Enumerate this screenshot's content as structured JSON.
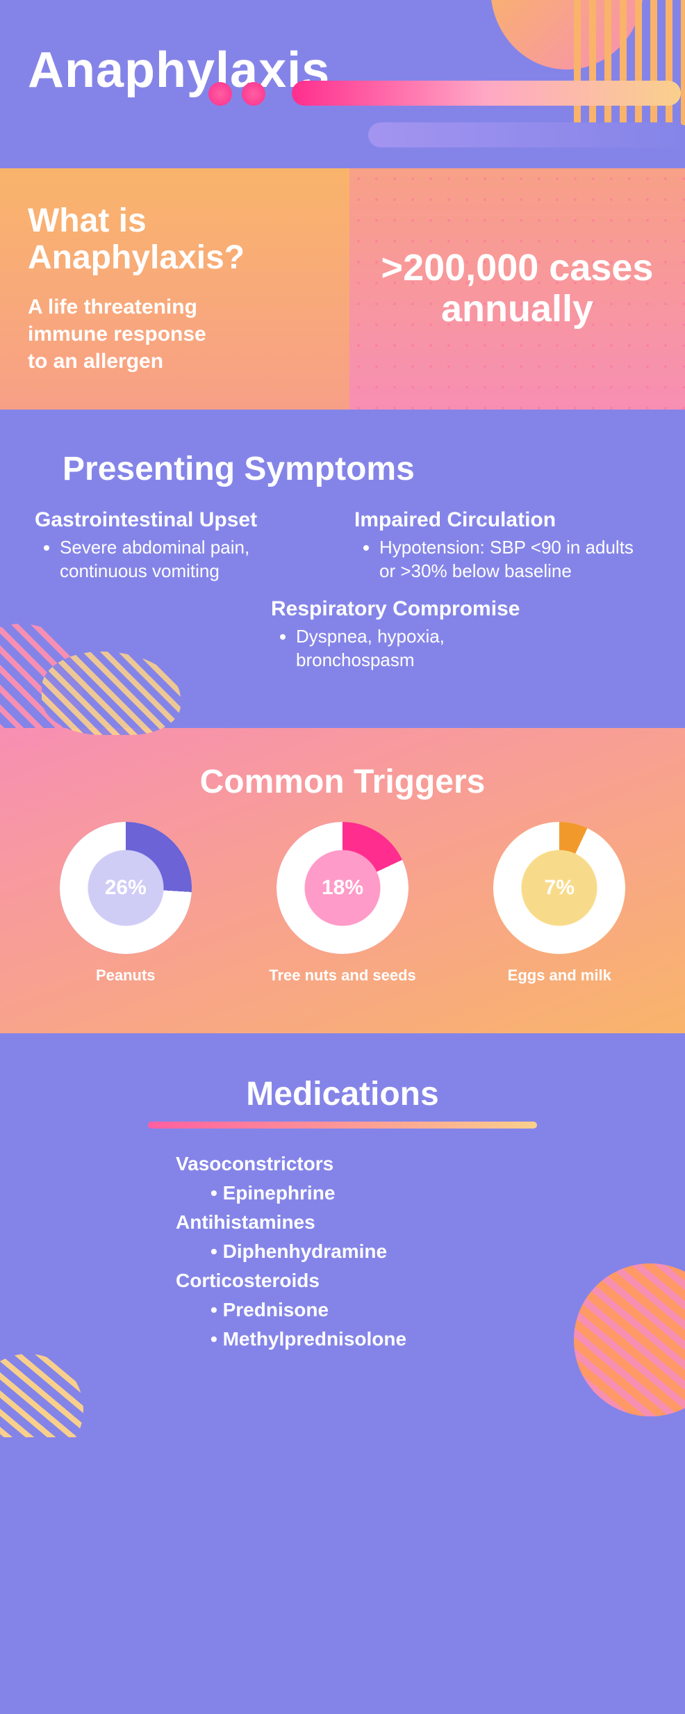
{
  "colors": {
    "bg_purple": "#8484e8",
    "orange": "#f9b46b",
    "pink": "#f78fb3",
    "hot_pink": "#ff2e8e",
    "yellow": "#f9d08b",
    "white": "#ffffff"
  },
  "header": {
    "title": "Anaphylaxis"
  },
  "whatis": {
    "heading": "What is Anaphylaxis?",
    "body": "A life threatening immune response to an allergen",
    "stat": ">200,000 cases annually"
  },
  "symptoms": {
    "heading": "Presenting Symptoms",
    "items": [
      {
        "title": "Impaired Circulation",
        "bullets": [
          "Hypotension: SBP <90 in adults or >30% below baseline"
        ]
      },
      {
        "title": "Gastrointestinal Upset",
        "bullets": [
          "Severe abdominal pain, continuous vomiting"
        ]
      },
      {
        "title": "Respiratory Compromise",
        "bullets": [
          "Dyspnea, hypoxia, bronchospasm"
        ]
      }
    ]
  },
  "triggers": {
    "heading": "Common Triggers",
    "donuts": [
      {
        "pct": 26,
        "pct_label": "26%",
        "label": "Peanuts",
        "outer_color": "#a8a6ef",
        "arc_color": "#6b63d6",
        "inner_color": "#cfcdf6",
        "text_color": "#ffffff"
      },
      {
        "pct": 18,
        "pct_label": "18%",
        "label": "Tree nuts and seeds",
        "outer_color": "#ff6fb0",
        "arc_color": "#ff2e8e",
        "inner_color": "#ff9bc8",
        "text_color": "#ffffff"
      },
      {
        "pct": 7,
        "pct_label": "7%",
        "label": "Eggs and milk",
        "outer_color": "#f5c84e",
        "arc_color": "#f19a2b",
        "inner_color": "#f8db8a",
        "text_color": "#ffffff"
      }
    ]
  },
  "meds": {
    "heading": "Medications",
    "groups": [
      {
        "class": "Vasoconstrictors",
        "drugs": [
          "Epinephrine"
        ]
      },
      {
        "class": "Antihistamines",
        "drugs": [
          "Diphenhydramine"
        ]
      },
      {
        "class": "Corticosteroids",
        "drugs": [
          "Prednisone",
          "Methylprednisolone"
        ]
      }
    ]
  }
}
